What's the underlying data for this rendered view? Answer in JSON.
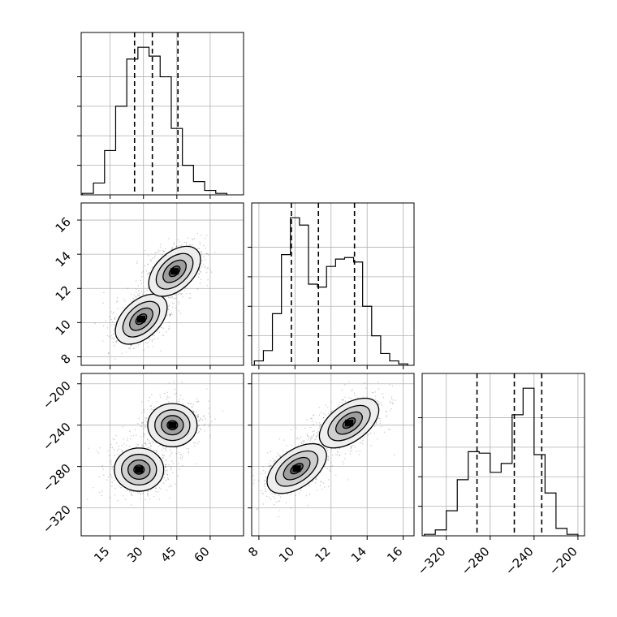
{
  "chart_data": [
    {
      "type": "histogram",
      "panel": "param0-marginal",
      "x": [
        5,
        10,
        15,
        20,
        25,
        30,
        35,
        40,
        45,
        50,
        55,
        60,
        65
      ],
      "values": [
        1,
        8,
        30,
        60,
        92,
        100,
        94,
        80,
        45,
        20,
        9,
        3,
        1
      ],
      "quantiles": [
        26,
        34,
        45.5
      ],
      "xlim": [
        2,
        75
      ],
      "grid": true
    },
    {
      "type": "histogram",
      "panel": "param1-marginal",
      "x": [
        8,
        8.5,
        9,
        9.5,
        10,
        10.5,
        11,
        11.5,
        12,
        12.5,
        13,
        13.5,
        14,
        14.5,
        15,
        15.5,
        16
      ],
      "values": [
        3,
        10,
        35,
        75,
        100,
        95,
        55,
        53,
        67,
        72,
        73,
        70,
        40,
        20,
        8,
        3,
        1
      ],
      "quantiles": [
        9.8,
        11.3,
        13.3
      ],
      "xlim": [
        7.6,
        16.6
      ],
      "grid": true
    },
    {
      "type": "histogram",
      "panel": "param2-marginal",
      "x": [
        -335,
        -325,
        -315,
        -305,
        -295,
        -285,
        -275,
        -265,
        -255,
        -245,
        -235,
        -225,
        -215,
        -205
      ],
      "values": [
        1,
        4,
        17,
        38,
        57,
        56,
        43,
        49,
        82,
        100,
        55,
        29,
        5,
        1
      ],
      "quantiles": [
        -292,
        -258,
        -233
      ],
      "xlim": [
        -342,
        -194
      ],
      "grid": true
    },
    {
      "type": "scatter",
      "panel": "param0-vs-param1",
      "modes": [
        {
          "x": 29,
          "y": 10.2
        },
        {
          "x": 44,
          "y": 13.0
        }
      ],
      "xlim": [
        2,
        75
      ],
      "ylim": [
        7.5,
        17
      ]
    },
    {
      "type": "scatter",
      "panel": "param0-vs-param2",
      "modes": [
        {
          "x": 28,
          "y": -283
        },
        {
          "x": 43,
          "y": -240
        }
      ],
      "xlim": [
        2,
        75
      ],
      "ylim": [
        -347,
        -190
      ]
    },
    {
      "type": "scatter",
      "panel": "param1-vs-param2",
      "modes": [
        {
          "x": 10.1,
          "y": -282
        },
        {
          "x": 13.0,
          "y": -238
        }
      ],
      "xlim": [
        7.6,
        16.6
      ],
      "ylim": [
        -347,
        -190
      ]
    }
  ],
  "ticks": {
    "p0_ticks": [
      15,
      30,
      45,
      60
    ],
    "p0_labels": [
      "15",
      "30",
      "45",
      "60"
    ],
    "p1_ticks": [
      8,
      10,
      12,
      14,
      16
    ],
    "p1_labels": [
      "8",
      "10",
      "12",
      "14",
      "16"
    ],
    "p2_ticks": [
      -320,
      -280,
      -240,
      -200
    ],
    "p2_labels": [
      "−320",
      "−280",
      "−240",
      "−200"
    ]
  }
}
